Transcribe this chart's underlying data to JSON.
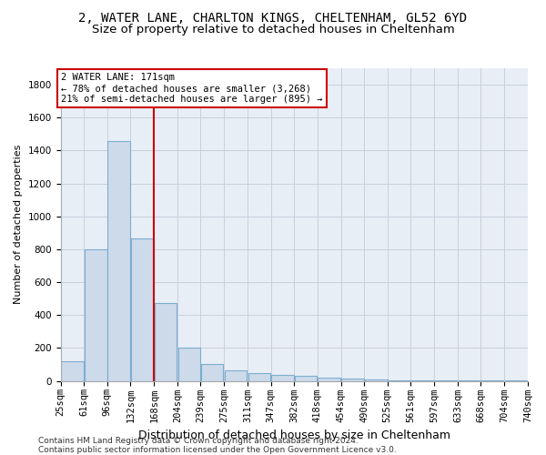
{
  "title": "2, WATER LANE, CHARLTON KINGS, CHELTENHAM, GL52 6YD",
  "subtitle": "Size of property relative to detached houses in Cheltenham",
  "xlabel": "Distribution of detached houses by size in Cheltenham",
  "ylabel": "Number of detached properties",
  "bar_color": "#ccdaea",
  "bar_edge_color": "#7badd0",
  "grid_color": "#c8d0dc",
  "bg_color": "#e8eef6",
  "vline_color": "#cc0000",
  "vline_x": 168,
  "annotation_text": "2 WATER LANE: 171sqm\n← 78% of detached houses are smaller (3,268)\n21% of semi-detached houses are larger (895) →",
  "annotation_box_facecolor": "#ffffff",
  "annotation_box_edgecolor": "#cc0000",
  "bins": [
    25,
    61,
    96,
    132,
    168,
    204,
    239,
    275,
    311,
    347,
    382,
    418,
    454,
    490,
    525,
    561,
    597,
    633,
    668,
    704,
    740
  ],
  "bin_labels": [
    "25sqm",
    "61sqm",
    "96sqm",
    "132sqm",
    "168sqm",
    "204sqm",
    "239sqm",
    "275sqm",
    "311sqm",
    "347sqm",
    "382sqm",
    "418sqm",
    "454sqm",
    "490sqm",
    "525sqm",
    "561sqm",
    "597sqm",
    "633sqm",
    "668sqm",
    "704sqm",
    "740sqm"
  ],
  "values": [
    120,
    800,
    1460,
    865,
    475,
    200,
    100,
    65,
    45,
    38,
    30,
    22,
    15,
    8,
    5,
    4,
    3,
    2,
    1,
    1,
    10
  ],
  "ylim": [
    0,
    1900
  ],
  "yticks": [
    0,
    200,
    400,
    600,
    800,
    1000,
    1200,
    1400,
    1600,
    1800
  ],
  "footer": "Contains HM Land Registry data © Crown copyright and database right 2024.\nContains public sector information licensed under the Open Government Licence v3.0.",
  "title_fontsize": 10,
  "subtitle_fontsize": 9.5,
  "xlabel_fontsize": 9,
  "ylabel_fontsize": 8,
  "tick_fontsize": 7.5,
  "annot_fontsize": 7.5,
  "footer_fontsize": 6.5
}
